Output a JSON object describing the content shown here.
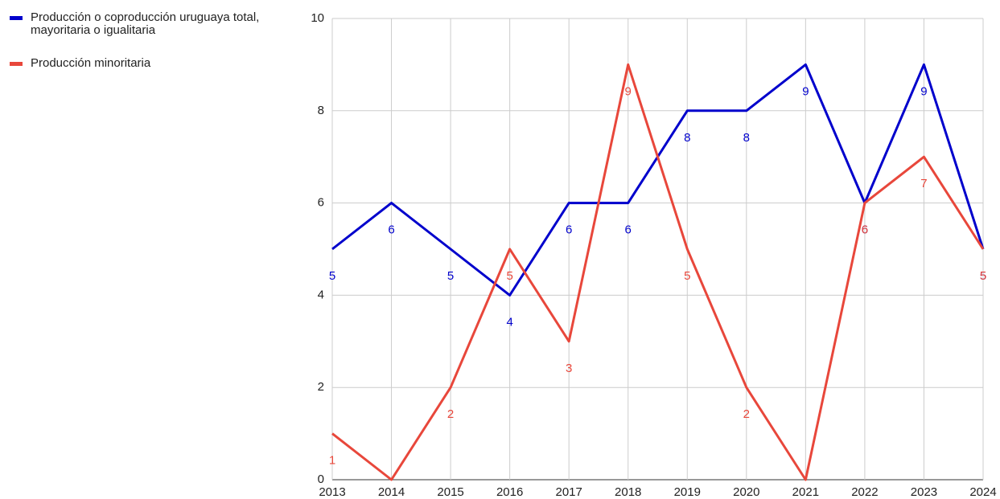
{
  "chart_data": {
    "type": "line",
    "categories": [
      "2013",
      "2014",
      "2015",
      "2016",
      "2017",
      "2018",
      "2019",
      "2020",
      "2021",
      "2022",
      "2023",
      "2024"
    ],
    "series": [
      {
        "name": "Producción o coproducción uruguaya total, mayoritaria o igualitaria",
        "color": "#0000cc",
        "values": [
          5,
          6,
          5,
          4,
          6,
          6,
          8,
          8,
          9,
          6,
          9,
          5
        ]
      },
      {
        "name": "Producción minoritaria",
        "color": "#e8473b",
        "values": [
          1,
          0,
          2,
          5,
          3,
          9,
          5,
          2,
          0,
          6,
          7,
          5
        ]
      }
    ],
    "ylim": [
      0,
      10
    ],
    "yticks": [
      0,
      2,
      4,
      6,
      8,
      10
    ],
    "grid": true,
    "legend": "top-left",
    "data_labels": true
  }
}
